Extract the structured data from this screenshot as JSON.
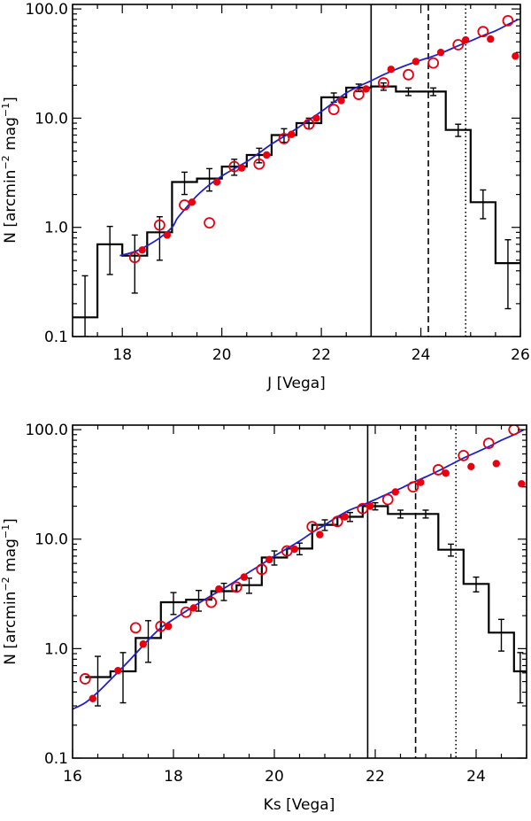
{
  "chart_data": [
    {
      "type": "line",
      "xscale": "linear",
      "yscale": "log",
      "xlim": [
        17,
        26
      ],
      "ylim": [
        0.1,
        110
      ],
      "xticks": [
        18,
        20,
        22,
        24,
        26
      ],
      "xtick_labels": [
        "18",
        "20",
        "22",
        "24",
        "26"
      ],
      "yticks": [
        0.1,
        1,
        10,
        100
      ],
      "ytick_labels": [
        "0.1",
        "1.0",
        "10.0",
        "100.0"
      ],
      "xlabel": "J [Vega]",
      "ylabel_main": "N [arcmin",
      "ylabel_sup1": "−2",
      "ylabel_mid": " mag",
      "ylabel_sup2": "−1",
      "ylabel_end": "]",
      "histogram": {
        "edges": [
          17.0,
          17.5,
          18.0,
          18.5,
          19.0,
          19.5,
          20.0,
          20.5,
          21.0,
          21.5,
          22.0,
          22.5,
          23.0,
          23.5,
          24.0,
          24.5,
          25.0,
          25.5,
          26.0
        ],
        "values": [
          0.15,
          0.7,
          0.55,
          0.9,
          2.6,
          2.8,
          3.6,
          4.6,
          7.0,
          9.0,
          15.5,
          19.0,
          19.5,
          17.5,
          17.5,
          7.8,
          1.7,
          0.47
        ],
        "err_lo": [
          0.08,
          0.33,
          0.3,
          0.4,
          0.6,
          0.65,
          0.6,
          0.7,
          1.0,
          1.0,
          1.5,
          1.5,
          1.5,
          1.4,
          1.4,
          1.0,
          0.5,
          0.29
        ],
        "err_hi": [
          0.21,
          0.32,
          0.3,
          0.35,
          0.6,
          0.65,
          0.6,
          0.7,
          1.0,
          1.0,
          1.5,
          1.5,
          1.5,
          1.4,
          1.4,
          1.0,
          0.5,
          0.3
        ]
      },
      "open_circles": {
        "x": [
          18.25,
          18.75,
          19.25,
          19.75,
          20.25,
          20.75,
          21.25,
          21.75,
          22.25,
          22.75,
          23.25,
          23.75,
          24.25,
          24.75,
          25.25,
          25.75
        ],
        "y": [
          0.53,
          1.05,
          1.6,
          1.1,
          3.6,
          3.8,
          6.5,
          8.8,
          12.0,
          16.5,
          21.0,
          25.0,
          32.0,
          47.0,
          62.0,
          78.0
        ]
      },
      "filled_circles": {
        "x": [
          18.4,
          18.9,
          19.4,
          19.9,
          20.4,
          20.9,
          21.4,
          21.9,
          22.4,
          22.9,
          23.4,
          23.9,
          24.4,
          24.9,
          25.4,
          25.9
        ],
        "y": [
          0.62,
          0.85,
          1.7,
          2.6,
          3.5,
          4.6,
          7.1,
          10.0,
          14.5,
          18.5,
          28.0,
          33.0,
          40.0,
          52.0,
          53.0,
          37.0
        ]
      },
      "fit_curve": {
        "x": [
          17.95,
          18.25,
          18.5,
          18.75,
          19.0,
          19.1,
          19.25,
          19.5,
          19.75,
          20.0,
          20.25,
          20.5,
          20.75,
          21.0,
          21.25,
          21.5,
          21.75,
          22.0,
          22.25,
          22.5,
          22.75,
          23.0,
          23.25,
          23.5,
          23.75,
          24.0,
          24.25,
          24.5,
          24.75,
          25.0,
          25.25,
          25.5,
          25.75,
          25.95
        ],
        "y": [
          0.55,
          0.6,
          0.68,
          0.8,
          1.0,
          1.2,
          1.45,
          1.95,
          2.45,
          2.95,
          3.45,
          4.0,
          4.8,
          5.8,
          6.8,
          8.0,
          9.6,
          11.5,
          14.0,
          17.0,
          19.5,
          22.0,
          25.0,
          28.0,
          31.0,
          34.0,
          37.0,
          41.0,
          46.0,
          51.0,
          57.0,
          63.0,
          72.0,
          80.0
        ]
      },
      "vlines": [
        {
          "x": 23.0,
          "style": "solid"
        },
        {
          "x": 24.15,
          "style": "dashed"
        },
        {
          "x": 24.9,
          "style": "dotted"
        }
      ],
      "colors": {
        "histogram": "#000000",
        "points": "#e8000f",
        "fit": "#1f1fd0"
      }
    },
    {
      "type": "line",
      "xscale": "linear",
      "yscale": "log",
      "xlim": [
        16,
        25
      ],
      "ylim": [
        0.1,
        110
      ],
      "xticks": [
        16,
        18,
        20,
        22,
        24
      ],
      "xtick_labels": [
        "16",
        "18",
        "20",
        "22",
        "24"
      ],
      "yticks": [
        0.1,
        1,
        10,
        100
      ],
      "ytick_labels": [
        "0.1",
        "1.0",
        "10.0",
        "100.0"
      ],
      "xlabel": "Ks [Vega]",
      "ylabel_main": "N [arcmin",
      "ylabel_sup1": "−2",
      "ylabel_mid": " mag",
      "ylabel_sup2": "−1",
      "ylabel_end": "]",
      "histogram": {
        "edges": [
          16.25,
          16.75,
          17.25,
          17.75,
          18.25,
          18.75,
          19.25,
          19.75,
          20.25,
          20.75,
          21.25,
          21.75,
          22.25,
          22.75,
          23.25,
          23.75,
          24.25,
          24.75,
          25.0
        ],
        "values": [
          0.55,
          0.62,
          1.25,
          2.65,
          2.8,
          3.35,
          3.8,
          6.8,
          8.2,
          13.5,
          16.0,
          20.0,
          17.0,
          17.0,
          8.0,
          3.9,
          1.4,
          0.62
        ],
        "err_lo": [
          0.25,
          0.3,
          0.5,
          0.6,
          0.6,
          0.6,
          0.6,
          1.0,
          1.0,
          1.5,
          1.5,
          1.5,
          1.4,
          1.4,
          1.0,
          0.6,
          0.45,
          0.3
        ],
        "err_hi": [
          0.3,
          0.3,
          0.55,
          0.6,
          0.6,
          0.6,
          0.6,
          1.0,
          1.0,
          1.5,
          1.5,
          1.5,
          1.4,
          1.4,
          1.0,
          0.6,
          0.45,
          0.3
        ]
      },
      "open_circles": {
        "x": [
          16.25,
          17.25,
          17.75,
          18.25,
          18.75,
          19.25,
          19.75,
          20.25,
          20.75,
          21.25,
          21.75,
          22.25,
          22.75,
          23.25,
          23.75,
          24.25,
          24.75
        ],
        "y": [
          0.53,
          1.55,
          1.6,
          2.15,
          2.65,
          3.65,
          5.3,
          7.8,
          13.0,
          14.5,
          19.0,
          23.0,
          30.0,
          43.0,
          58.0,
          75.0,
          100.0
        ]
      },
      "filled_circles": {
        "x": [
          16.4,
          16.9,
          17.4,
          17.9,
          18.4,
          18.9,
          19.4,
          19.9,
          20.4,
          20.9,
          21.4,
          21.9,
          22.4,
          22.9,
          23.4,
          23.9,
          24.4,
          24.9
        ],
        "y": [
          0.35,
          0.63,
          1.1,
          1.6,
          2.35,
          3.5,
          4.5,
          6.5,
          8.1,
          11.0,
          16.0,
          20.0,
          27.0,
          33.0,
          40.0,
          46.0,
          49.0,
          32.0
        ]
      },
      "fit_curve": {
        "x": [
          16.0,
          16.25,
          16.5,
          16.75,
          17.0,
          17.25,
          17.5,
          17.75,
          18.0,
          18.25,
          18.5,
          18.75,
          19.0,
          19.25,
          19.5,
          19.75,
          20.0,
          20.25,
          20.5,
          20.75,
          21.0,
          21.25,
          21.5,
          21.75,
          22.0,
          22.25,
          22.5,
          22.75,
          23.0,
          23.25,
          23.5,
          23.75,
          24.0,
          24.25,
          24.5,
          24.75,
          24.95
        ],
        "y": [
          0.28,
          0.32,
          0.4,
          0.52,
          0.68,
          0.9,
          1.2,
          1.55,
          1.85,
          2.2,
          2.6,
          3.05,
          3.55,
          4.2,
          5.0,
          5.9,
          7.0,
          8.2,
          9.6,
          11.5,
          13.5,
          16.0,
          18.5,
          20.5,
          23.0,
          26.0,
          29.0,
          33.0,
          37.0,
          42.0,
          48.0,
          55.0,
          62.0,
          70.0,
          80.0,
          90.0,
          100.0
        ]
      },
      "vlines": [
        {
          "x": 21.85,
          "style": "solid"
        },
        {
          "x": 22.8,
          "style": "dashed"
        },
        {
          "x": 23.6,
          "style": "dotted"
        }
      ],
      "colors": {
        "histogram": "#000000",
        "points": "#e8000f",
        "fit": "#1f1fd0"
      }
    }
  ]
}
